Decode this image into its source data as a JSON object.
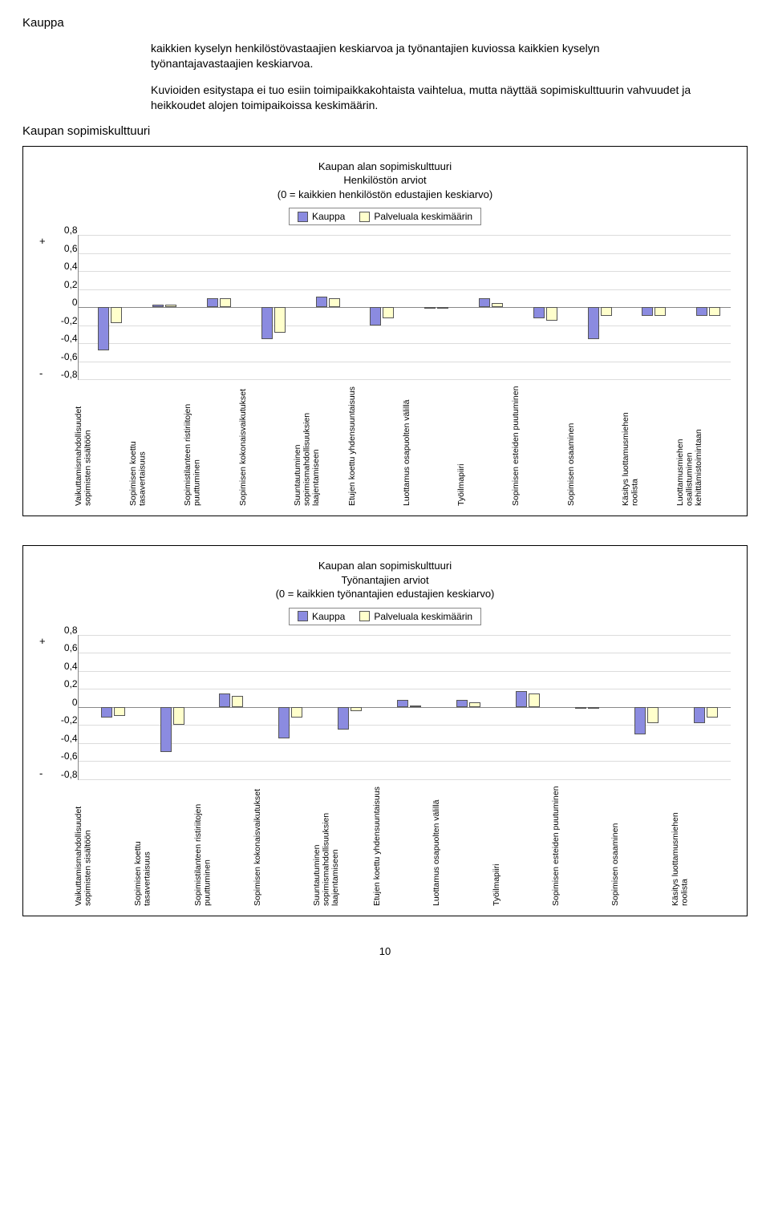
{
  "section_title": "Kauppa",
  "intro_p1": "kaikkien kyselyn henkilöstövastaajien keskiarvoa ja työnantajien kuviossa kaikkien kyselyn työnantajavastaajien keskiarvoa.",
  "intro_p2": "Kuvioiden esitystapa ei tuo esiin toimipaikkakohtaista vaihtelua, mutta näyttää sopimiskulttuurin vahvuudet ja heikkoudet alojen toimipaikoissa keskimäärin.",
  "sub_title": "Kaupan sopimiskulttuuri",
  "page_num": "10",
  "chart1": {
    "type": "bar",
    "title_l1": "Kaupan alan sopimiskulttuuri",
    "title_l2": "Henkilöstön arviot",
    "title_l3": "(0 = kaikkien henkilöstön edustajien keskiarvo)",
    "legend": [
      "Kauppa",
      "Palveluala keskimäärin"
    ],
    "colors": [
      "#8b8be0",
      "#ffffcc"
    ],
    "border_color": "#555555",
    "grid_color": "#dcdcdc",
    "bg": "#ffffff",
    "ylim": [
      -0.8,
      0.8
    ],
    "yticks": [
      "0,8",
      "0,6",
      "0,4",
      "0,2",
      "0",
      "-0,2",
      "-0,4",
      "-0,6",
      "-0,8"
    ],
    "plus": "+",
    "minus": "-",
    "categories": [
      "Vaikuttamismahdollisuudet sopimisten sisältöön",
      "Sopimisen koettu tasavertaisuus",
      "Sopimistilanteen ristiriitojen puuttuminen",
      "Sopimisen kokonaisvaikutukset",
      "Suuntautuminen sopimismahdollisuuksien laajentamiseen",
      "Etujen koettu yhdensuuntaisuus",
      "Luottamus osapuolten välillä",
      "Työilmapiiri",
      "Sopimisen esteiden puutuminen",
      "Sopimisen osaaminen",
      "Käsitys luottamusmiehen roolista",
      "Luottamusmiehen osallistuminen kehittämistoimintaan"
    ],
    "series": [
      [
        -0.48,
        0.03,
        0.1,
        -0.35,
        0.12,
        -0.2,
        -0.02,
        0.1,
        -0.12,
        -0.35,
        -0.1,
        -0.1
      ],
      [
        -0.18,
        0.03,
        0.1,
        -0.28,
        0.1,
        -0.12,
        -0.02,
        0.05,
        -0.15,
        -0.1,
        -0.1,
        -0.1
      ]
    ]
  },
  "chart2": {
    "type": "bar",
    "title_l1": "Kaupan alan sopimiskulttuuri",
    "title_l2": "Työnantajien arviot",
    "title_l3": "(0 = kaikkien työnantajien edustajien keskiarvo)",
    "legend": [
      "Kauppa",
      "Palveluala keskimäärin"
    ],
    "colors": [
      "#8b8be0",
      "#ffffcc"
    ],
    "border_color": "#555555",
    "grid_color": "#dcdcdc",
    "bg": "#ffffff",
    "ylim": [
      -0.8,
      0.8
    ],
    "yticks": [
      "0,8",
      "0,6",
      "0,4",
      "0,2",
      "0",
      "-0,2",
      "-0,4",
      "-0,6",
      "-0,8"
    ],
    "plus": "+",
    "minus": "-",
    "categories": [
      "Vaikuttamismahdollisuudet sopimisten sisältöön",
      "Sopimisen koettu tasavertaisuus",
      "Sopimistilanteen ristiriitojen puuttuminen",
      "Sopimisen kokonaisvaikutukset",
      "Suuntautuminen sopimismahdollisuuksien laajentamiseen",
      "Etujen koettu yhdensuuntaisuus",
      "Luottamus osapuolten välillä",
      "Työilmapiiri",
      "Sopimisen esteiden puutuminen",
      "Sopimisen osaaminen",
      "Käsitys luottamusmiehen roolista"
    ],
    "series": [
      [
        -0.12,
        -0.5,
        0.15,
        -0.35,
        -0.25,
        0.08,
        0.08,
        0.18,
        -0.02,
        -0.3,
        -0.18
      ],
      [
        -0.1,
        -0.2,
        0.12,
        -0.12,
        -0.05,
        0.02,
        0.05,
        0.15,
        -0.02,
        -0.18,
        -0.12
      ]
    ]
  }
}
